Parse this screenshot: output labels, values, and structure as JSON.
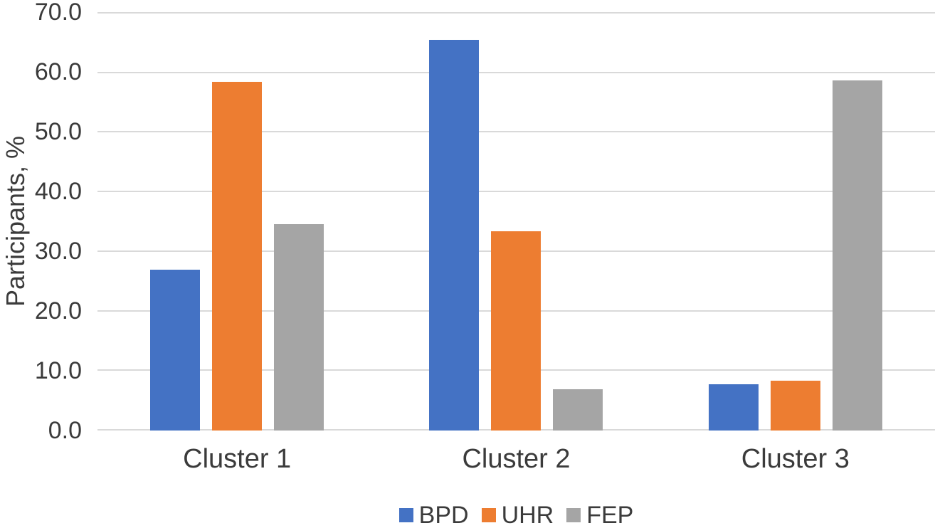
{
  "chart_data": {
    "type": "bar",
    "title": "",
    "xlabel": "",
    "ylabel": "Participants, %",
    "categories": [
      "Cluster 1",
      "Cluster 2",
      "Cluster 3"
    ],
    "series": [
      {
        "name": "BPD",
        "color": "#4472C4",
        "values": [
          26.9,
          65.4,
          7.7
        ]
      },
      {
        "name": "UHR",
        "color": "#ED7D31",
        "values": [
          58.3,
          33.3,
          8.3
        ]
      },
      {
        "name": "FEP",
        "color": "#A5A5A5",
        "values": [
          34.5,
          6.9,
          58.6
        ]
      }
    ],
    "ylim": [
      0,
      70
    ],
    "ytick_step": 10,
    "ytick_labels": [
      "0.0",
      "10.0",
      "20.0",
      "30.0",
      "40.0",
      "50.0",
      "60.0",
      "70.0"
    ],
    "grid": true,
    "legend_position": "bottom"
  },
  "colors": {
    "background": "#FFFFFF",
    "gridline": "#D9D9D9",
    "axis_line": "#D9D9D9",
    "text": "#3B3B3B"
  }
}
